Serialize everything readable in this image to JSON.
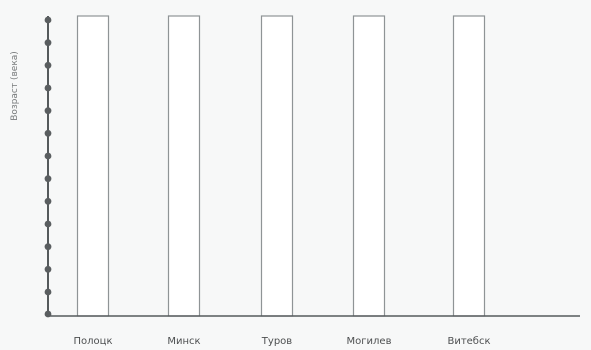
{
  "chart_data": {
    "type": "bar",
    "categories": [
      "Полоцк",
      "Минск",
      "Туров",
      "Могилев",
      "Витебск"
    ],
    "values": [
      null,
      null,
      null,
      null,
      null
    ],
    "title": "",
    "xlabel": "",
    "ylabel": "Возраст (века)",
    "y_tick_count": 13,
    "grid": false,
    "legend": "none",
    "colors": {
      "axis": "#555a5c",
      "dot": "#5a5e60",
      "bar_outline": "#8f9496",
      "bar_fill": "#ffffff",
      "background": "#f7f8f8"
    }
  }
}
